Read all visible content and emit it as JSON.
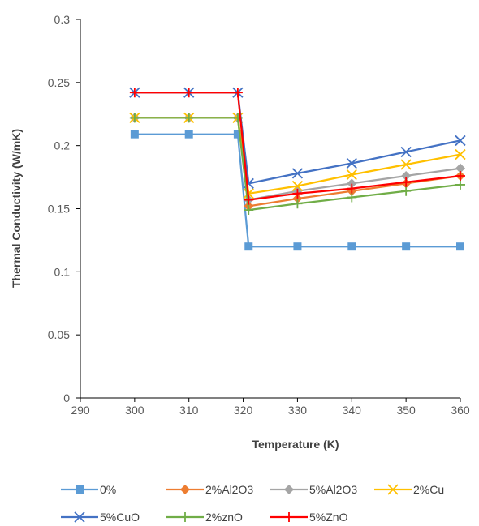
{
  "chart_data": {
    "type": "line",
    "xlabel": "Temperature (K)",
    "ylabel": "Thermal Conductivity (W/mK)",
    "xlim": [
      290,
      360
    ],
    "ylim": [
      0,
      0.3
    ],
    "xticks": [
      "290",
      "300",
      "310",
      "320",
      "330",
      "340",
      "350",
      "360"
    ],
    "yticks": [
      "0",
      "0.05",
      "0.1",
      "0.15",
      "0.2",
      "0.25",
      "0.3"
    ],
    "grid": false,
    "legend_position": "bottom",
    "series": [
      {
        "name": "0%",
        "color": "#5B9BD5",
        "marker": "square",
        "x": [
          300,
          310,
          319,
          321,
          330,
          340,
          350,
          360
        ],
        "y": [
          0.209,
          0.209,
          0.209,
          0.12,
          0.12,
          0.12,
          0.12,
          0.12
        ]
      },
      {
        "name": "2%Al2O3",
        "color": "#ED7D31",
        "marker": "diamond",
        "x": [
          300,
          310,
          319,
          321,
          330,
          340,
          350,
          360
        ],
        "y": [
          0.222,
          0.222,
          0.222,
          0.152,
          0.158,
          0.164,
          0.17,
          0.176
        ]
      },
      {
        "name": "5%Al2O3",
        "color": "#A5A5A5",
        "marker": "diamond",
        "x": [
          300,
          310,
          319,
          321,
          330,
          340,
          350,
          360
        ],
        "y": [
          0.222,
          0.222,
          0.222,
          0.157,
          0.164,
          0.17,
          0.176,
          0.182
        ]
      },
      {
        "name": "2%Cu",
        "color": "#FFC000",
        "marker": "x",
        "x": [
          300,
          310,
          319,
          321,
          330,
          340,
          350,
          360
        ],
        "y": [
          0.222,
          0.222,
          0.222,
          0.162,
          0.168,
          0.177,
          0.185,
          0.193
        ]
      },
      {
        "name": "5%CuO",
        "color": "#4472C4",
        "marker": "x",
        "x": [
          300,
          310,
          319,
          321,
          330,
          340,
          350,
          360
        ],
        "y": [
          0.242,
          0.242,
          0.242,
          0.17,
          0.178,
          0.186,
          0.195,
          0.204
        ]
      },
      {
        "name": "2%znO",
        "color": "#70AD47",
        "marker": "plus",
        "x": [
          300,
          310,
          319,
          321,
          330,
          340,
          350,
          360
        ],
        "y": [
          0.222,
          0.222,
          0.222,
          0.149,
          0.154,
          0.159,
          0.164,
          0.169
        ]
      },
      {
        "name": "5%ZnO",
        "color": "#FF0000",
        "marker": "plus",
        "x": [
          300,
          310,
          319,
          321,
          330,
          340,
          350,
          360
        ],
        "y": [
          0.242,
          0.242,
          0.242,
          0.157,
          0.162,
          0.166,
          0.171,
          0.176
        ]
      }
    ]
  }
}
